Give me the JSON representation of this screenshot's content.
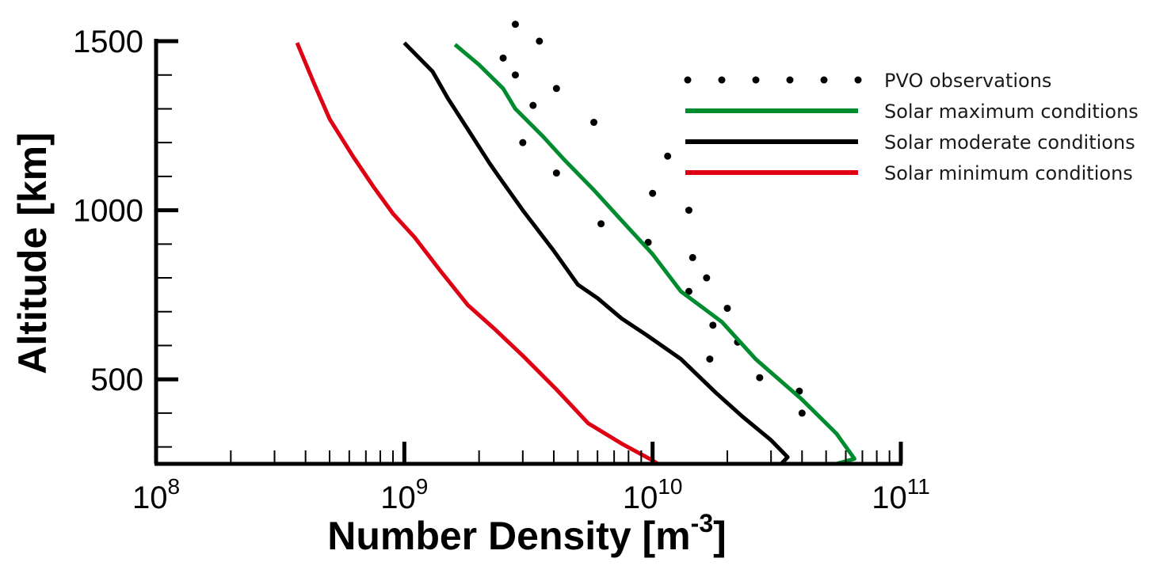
{
  "chart_data": {
    "type": "line",
    "title": "",
    "xlabel": "Number Density [m",
    "xlabel_sup": "-3",
    "xlabel_end": "]",
    "ylabel": "Altitude [km]",
    "x_scale": "log",
    "xlim": [
      100000000.0,
      100000000000.0
    ],
    "ylim": [
      250,
      1500
    ],
    "x_ticks": [
      {
        "value": 100000000.0,
        "base": "10",
        "exp": "8"
      },
      {
        "value": 1000000000.0,
        "base": "10",
        "exp": "9"
      },
      {
        "value": 10000000000.0,
        "base": "10",
        "exp": "10"
      },
      {
        "value": 100000000000.0,
        "base": "10",
        "exp": "11"
      }
    ],
    "y_ticks": [
      {
        "value": 500,
        "label": "500"
      },
      {
        "value": 1000,
        "label": "1000"
      },
      {
        "value": 1500,
        "label": "1500"
      }
    ],
    "grid": false,
    "legend_position": "top-right",
    "series": [
      {
        "name": "PVO observations",
        "style": "dotted-markers",
        "color": "#000000",
        "points": [
          [
            2800000000.0,
            1550
          ],
          [
            3500000000.0,
            1500
          ],
          [
            2500000000.0,
            1450
          ],
          [
            2800000000.0,
            1400
          ],
          [
            4100000000.0,
            1360
          ],
          [
            3300000000.0,
            1310
          ],
          [
            5800000000.0,
            1260
          ],
          [
            3000000000.0,
            1200
          ],
          [
            11500000000.0,
            1160
          ],
          [
            4100000000.0,
            1110
          ],
          [
            10000000000.0,
            1050
          ],
          [
            14000000000.0,
            1000
          ],
          [
            6200000000.0,
            960
          ],
          [
            9600000000.0,
            905
          ],
          [
            14500000000.0,
            860
          ],
          [
            16500000000.0,
            800
          ],
          [
            14000000000.0,
            760
          ],
          [
            20000000000.0,
            710
          ],
          [
            17500000000.0,
            660
          ],
          [
            22000000000.0,
            610
          ],
          [
            17000000000.0,
            560
          ],
          [
            27000000000.0,
            505
          ],
          [
            39000000000.0,
            465
          ],
          [
            40000000000.0,
            400
          ]
        ]
      },
      {
        "name": "Solar maximum conditions",
        "style": "line",
        "color": "#008b2e",
        "points": [
          [
            1600000000.0,
            1490
          ],
          [
            2000000000.0,
            1430
          ],
          [
            2500000000.0,
            1360
          ],
          [
            2800000000.0,
            1300
          ],
          [
            3600000000.0,
            1220
          ],
          [
            4400000000.0,
            1150
          ],
          [
            5800000000.0,
            1060
          ],
          [
            7500000000.0,
            970
          ],
          [
            10000000000.0,
            870
          ],
          [
            13000000000.0,
            760
          ],
          [
            19000000000.0,
            670
          ],
          [
            26000000000.0,
            560
          ],
          [
            40000000000.0,
            440
          ],
          [
            55000000000.0,
            340
          ],
          [
            65000000000.0,
            265
          ],
          [
            55000000000.0,
            250
          ]
        ]
      },
      {
        "name": "Solar moderate conditions",
        "style": "line",
        "color": "#000000",
        "points": [
          [
            1000000000.0,
            1495
          ],
          [
            1300000000.0,
            1410
          ],
          [
            1500000000.0,
            1330
          ],
          [
            1800000000.0,
            1240
          ],
          [
            2200000000.0,
            1140
          ],
          [
            2400000000.0,
            1100
          ],
          [
            3000000000.0,
            1000
          ],
          [
            4000000000.0,
            880
          ],
          [
            5000000000.0,
            780
          ],
          [
            6000000000.0,
            740
          ],
          [
            7500000000.0,
            680
          ],
          [
            9500000000.0,
            630
          ],
          [
            13000000000.0,
            560
          ],
          [
            18000000000.0,
            460
          ],
          [
            23000000000.0,
            390
          ],
          [
            30000000000.0,
            320
          ],
          [
            35000000000.0,
            270
          ],
          [
            33000000000.0,
            250
          ]
        ]
      },
      {
        "name": "Solar minimum conditions",
        "style": "line",
        "color": "#e00014",
        "points": [
          [
            370000000.0,
            1495
          ],
          [
            430000000.0,
            1380
          ],
          [
            500000000.0,
            1270
          ],
          [
            620000000.0,
            1160
          ],
          [
            750000000.0,
            1070
          ],
          [
            900000000.0,
            990
          ],
          [
            1100000000.0,
            920
          ],
          [
            1400000000.0,
            820
          ],
          [
            1800000000.0,
            720
          ],
          [
            2300000000.0,
            650
          ],
          [
            3000000000.0,
            570
          ],
          [
            4100000000.0,
            470
          ],
          [
            5500000000.0,
            370
          ],
          [
            7500000000.0,
            310
          ],
          [
            10000000000.0,
            260
          ],
          [
            10500000000.0,
            250
          ]
        ]
      }
    ]
  }
}
